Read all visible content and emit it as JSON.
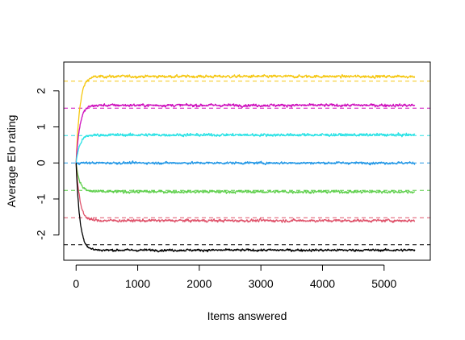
{
  "chart_data": {
    "type": "line",
    "title": "",
    "xlabel": "Items answered",
    "ylabel": "Average Elo rating",
    "xlim": [
      -200,
      5750
    ],
    "ylim": [
      -2.7,
      2.8
    ],
    "x_ticks": [
      0,
      1000,
      2000,
      3000,
      4000,
      5000
    ],
    "y_ticks": [
      -2,
      -1,
      0,
      1,
      2
    ],
    "x_tick_labels": [
      "0",
      "1000",
      "2000",
      "3000",
      "4000",
      "5000"
    ],
    "y_tick_labels": [
      "-2",
      "-1",
      "0",
      "1",
      "2"
    ],
    "x_range": [
      0,
      5500
    ],
    "grid": false,
    "legend": "none",
    "series": [
      {
        "color": "#F5C710",
        "start": 0.0,
        "plateau": 2.4,
        "reference": 2.27,
        "noise": 0.035
      },
      {
        "color": "#CD0BBC",
        "start": 0.0,
        "plateau": 1.6,
        "reference": 1.52,
        "noise": 0.035
      },
      {
        "color": "#28E2E5",
        "start": 0.0,
        "plateau": 0.78,
        "reference": 0.76,
        "noise": 0.035
      },
      {
        "color": "#2297E6",
        "start": 0.0,
        "plateau": 0.0,
        "reference": 0.0,
        "noise": 0.03
      },
      {
        "color": "#61D04F",
        "start": 0.0,
        "plateau": -0.8,
        "reference": -0.76,
        "noise": 0.035
      },
      {
        "color": "#DF536B",
        "start": 0.0,
        "plateau": -1.6,
        "reference": -1.52,
        "noise": 0.035
      },
      {
        "color": "#000000",
        "start": 0.0,
        "plateau": -2.42,
        "reference": -2.27,
        "noise": 0.03
      }
    ]
  }
}
